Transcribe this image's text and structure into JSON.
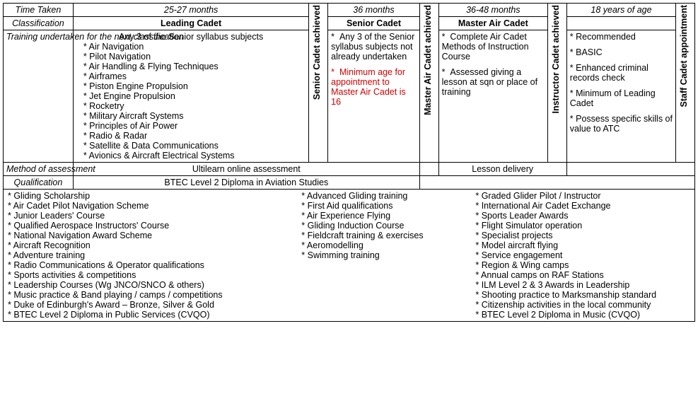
{
  "rowLabels": {
    "timeTaken": "Time Taken",
    "classification": "Classification",
    "training": "Training undertaken for the next classification",
    "method": "Method of assessment",
    "qualification": "Qualification"
  },
  "columns": {
    "leading": {
      "time": "25-27 months",
      "title": "Leading Cadet",
      "trainingHeader": "Any 3 of the Senior syllabus subjects",
      "subjects": [
        "Air Navigation",
        "Pilot Navigation",
        "Air Handling & Flying Techniques",
        "Airframes",
        "Piston Engine Propulsion",
        "Jet Engine Propulsion",
        "Rocketry",
        "Military Aircraft Systems",
        "Principles of Air Power",
        "Radio & Radar",
        "Satellite & Data Communications",
        "Avionics & Aircraft Electrical Systems"
      ]
    },
    "seniorAchieved": "Senior Cadet achieved",
    "senior": {
      "time": "36 months",
      "title": "Senior Cadet",
      "bullet1": "Any 3 of the Senior syllabus subjects not already undertaken",
      "redNote": "Minimum age for appointment to Master Air Cadet is 16"
    },
    "masterAchieved": "Master Air Cadet achieved",
    "master": {
      "time": "36-48 months",
      "title": "Master Air Cadet",
      "bullet1": "Complete Air Cadet Methods of Instruction Course",
      "bullet2": "Assessed giving a lesson at sqn or place of training"
    },
    "instructorAchieved": "Instructor Cadet achieved",
    "staff": {
      "time": "18 years of age",
      "bullets": [
        "Recommended",
        "BASIC",
        "Enhanced criminal records check",
        "Minimum of Leading Cadet",
        "Possess specific skills of value to ATC"
      ]
    },
    "staffAppointment": "Staff Cadet appointment"
  },
  "method": {
    "ultilearn": "Ultilearn online assessment",
    "lesson": "Lesson delivery"
  },
  "qualification": "BTEC Level 2 Diploma in Aviation Studies",
  "qualList": {
    "col1": [
      "Gliding Scholarship",
      "Air Cadet Pilot Navigation Scheme",
      "Junior Leaders' Course",
      "Qualified Aerospace Instructors' Course",
      "National Navigation Award Scheme",
      "Aircraft Recognition",
      "Adventure training",
      "Radio Communications & Operator qualifications",
      "Sports activities & competitions",
      "Leadership Courses (Wg JNCO/SNCO & others)",
      "Music practice & Band playing / camps / competitions",
      "Duke of Edinburgh's Award – Bronze, Silver & Gold",
      "BTEC Level 2 Diploma in Public Services (CVQO)"
    ],
    "col2": [
      "Advanced Gliding training",
      "First Aid qualifications",
      "Air Experience Flying",
      "Gliding Induction Course",
      "Fieldcraft training & exercises",
      "Aeromodelling",
      "Swimming training"
    ],
    "col3": [
      "Graded Glider Pilot / Instructor",
      "International Air Cadet Exchange",
      "Sports Leader Awards",
      "Flight Simulator operation",
      "Specialist projects",
      "Model aircraft flying",
      "Service engagement",
      "Region & Wing camps",
      "Annual camps on RAF Stations",
      "ILM Level 2 & 3 Awards in Leadership",
      "Shooting practice to Marksmanship standard",
      "Citizenship activities in the local community",
      "BTEC Level 2 Diploma in Music  (CVQO)"
    ]
  }
}
